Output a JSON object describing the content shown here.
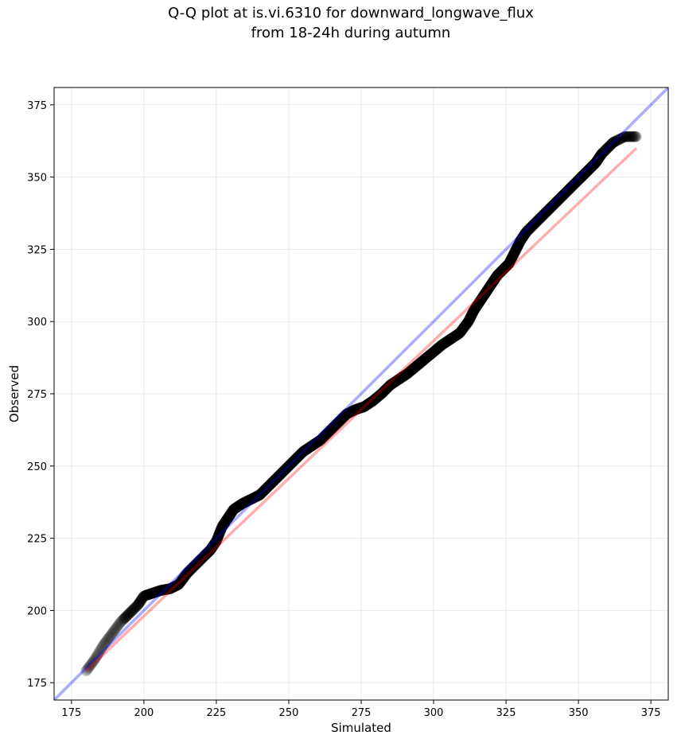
{
  "chart_data": {
    "type": "scatter",
    "title_line1": "Q-Q plot at is.vi.6310 for downward_longwave_flux",
    "title_line2": "from 18-24h during autumn",
    "xlabel": "Simulated",
    "ylabel": "Observed",
    "xlim": [
      169,
      381
    ],
    "ylim": [
      169,
      381
    ],
    "xticks": [
      175,
      200,
      225,
      250,
      275,
      300,
      325,
      350,
      375
    ],
    "yticks": [
      175,
      200,
      225,
      250,
      275,
      300,
      325,
      350,
      375
    ],
    "xtick_labels": [
      "175",
      "200",
      "225",
      "250",
      "275",
      "300",
      "325",
      "350",
      "375"
    ],
    "ytick_labels": [
      "175",
      "200",
      "225",
      "250",
      "275",
      "300",
      "325",
      "350",
      "375"
    ],
    "grid": true,
    "quantile_curve": {
      "x": [
        180,
        183,
        186,
        189,
        192,
        195,
        198,
        200,
        203,
        206,
        209,
        212,
        215,
        218,
        221,
        223,
        225,
        227,
        229,
        231,
        234,
        237,
        240,
        243,
        246,
        249,
        252,
        255,
        258,
        261,
        264,
        267,
        270,
        273,
        276,
        279,
        282,
        285,
        288,
        291,
        294,
        297,
        300,
        303,
        306,
        309,
        312,
        314,
        316,
        318,
        320,
        322,
        324,
        326,
        328,
        330,
        332,
        335,
        338,
        341,
        344,
        347,
        350,
        352,
        354,
        356,
        358,
        360,
        362,
        364,
        366,
        368,
        370
      ],
      "y": [
        179,
        183,
        188,
        192,
        196,
        199,
        202,
        205,
        206,
        207,
        207.5,
        209,
        213,
        216,
        219,
        221,
        224,
        229,
        232,
        235,
        237,
        238.5,
        240,
        243,
        246,
        249,
        252,
        255,
        257,
        259,
        262,
        265,
        268,
        269.5,
        270.5,
        272.5,
        275,
        278,
        280,
        282,
        284.5,
        287,
        289.5,
        292,
        294,
        296,
        300,
        304,
        307,
        310,
        313,
        316,
        318,
        320,
        324,
        328,
        331,
        334,
        337,
        340,
        343,
        346,
        349,
        351,
        353,
        355,
        358,
        360,
        362,
        363,
        364,
        364,
        364
      ]
    },
    "reference_line": {
      "slope": 1,
      "intercept": 0,
      "color": "#0000ff"
    },
    "fit_line": {
      "x": [
        180,
        370
      ],
      "y": [
        179,
        360
      ],
      "color": "#ff0000"
    },
    "colors": {
      "points": "#000000",
      "reference": "#0000ff",
      "fit": "#ff0000"
    }
  }
}
